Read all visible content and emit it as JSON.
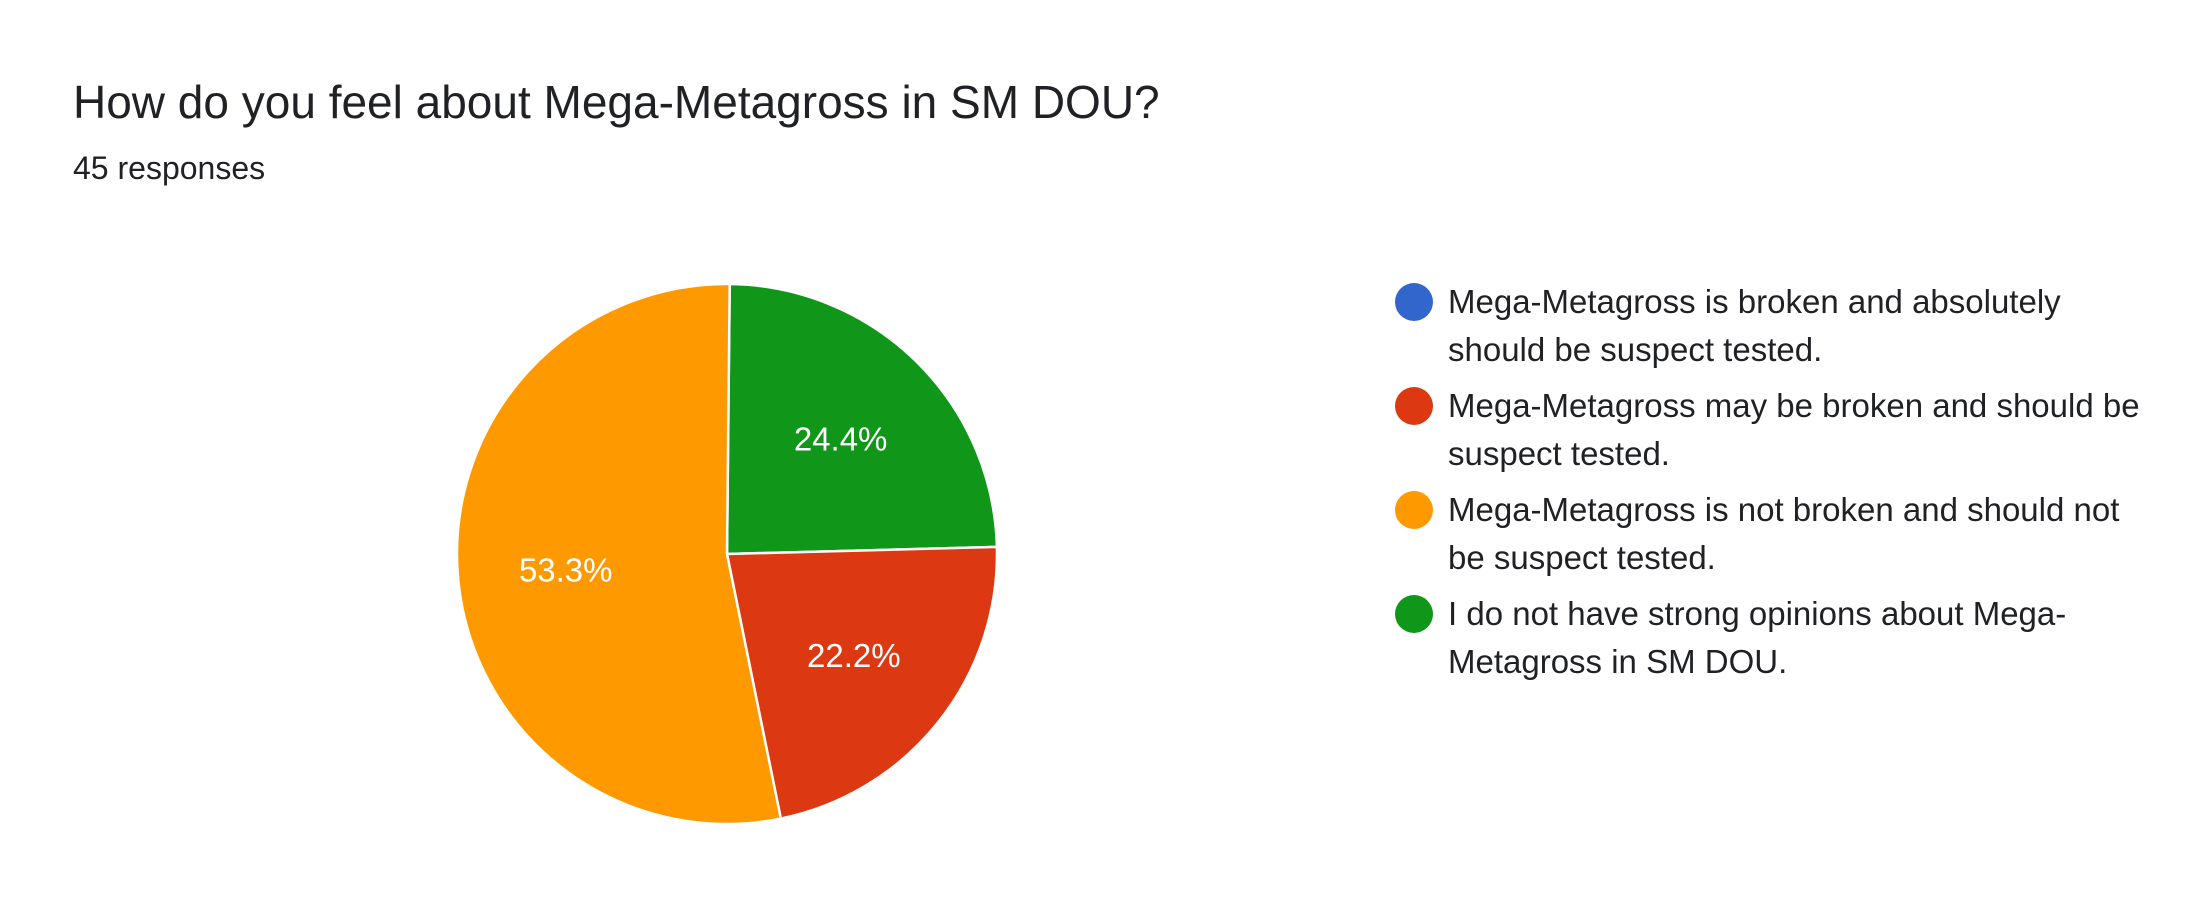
{
  "title": "How do you feel about Mega-Metagross in SM DOU?",
  "subtitle": "45 responses",
  "chart_data": {
    "type": "pie",
    "title": "How do you feel about Mega-Metagross in SM DOU?",
    "total_responses": 45,
    "legend_position": "right",
    "slices": [
      {
        "label": "Mega-Metagross is broken and absolutely should be suspect tested.",
        "percent": 0.0,
        "display": "",
        "color": "#3366cc"
      },
      {
        "label": "Mega-Metagross may be broken and should be suspect tested.",
        "percent": 22.2,
        "display": "22.2%",
        "color": "#dc3912"
      },
      {
        "label": "Mega-Metagross is not broken and should not be suspect tested.",
        "percent": 53.3,
        "display": "53.3%",
        "color": "#ff9900"
      },
      {
        "label": "I do not have strong opinions about Mega-Metagross in SM DOU.",
        "percent": 24.4,
        "display": "24.4%",
        "color": "#109618"
      }
    ]
  }
}
